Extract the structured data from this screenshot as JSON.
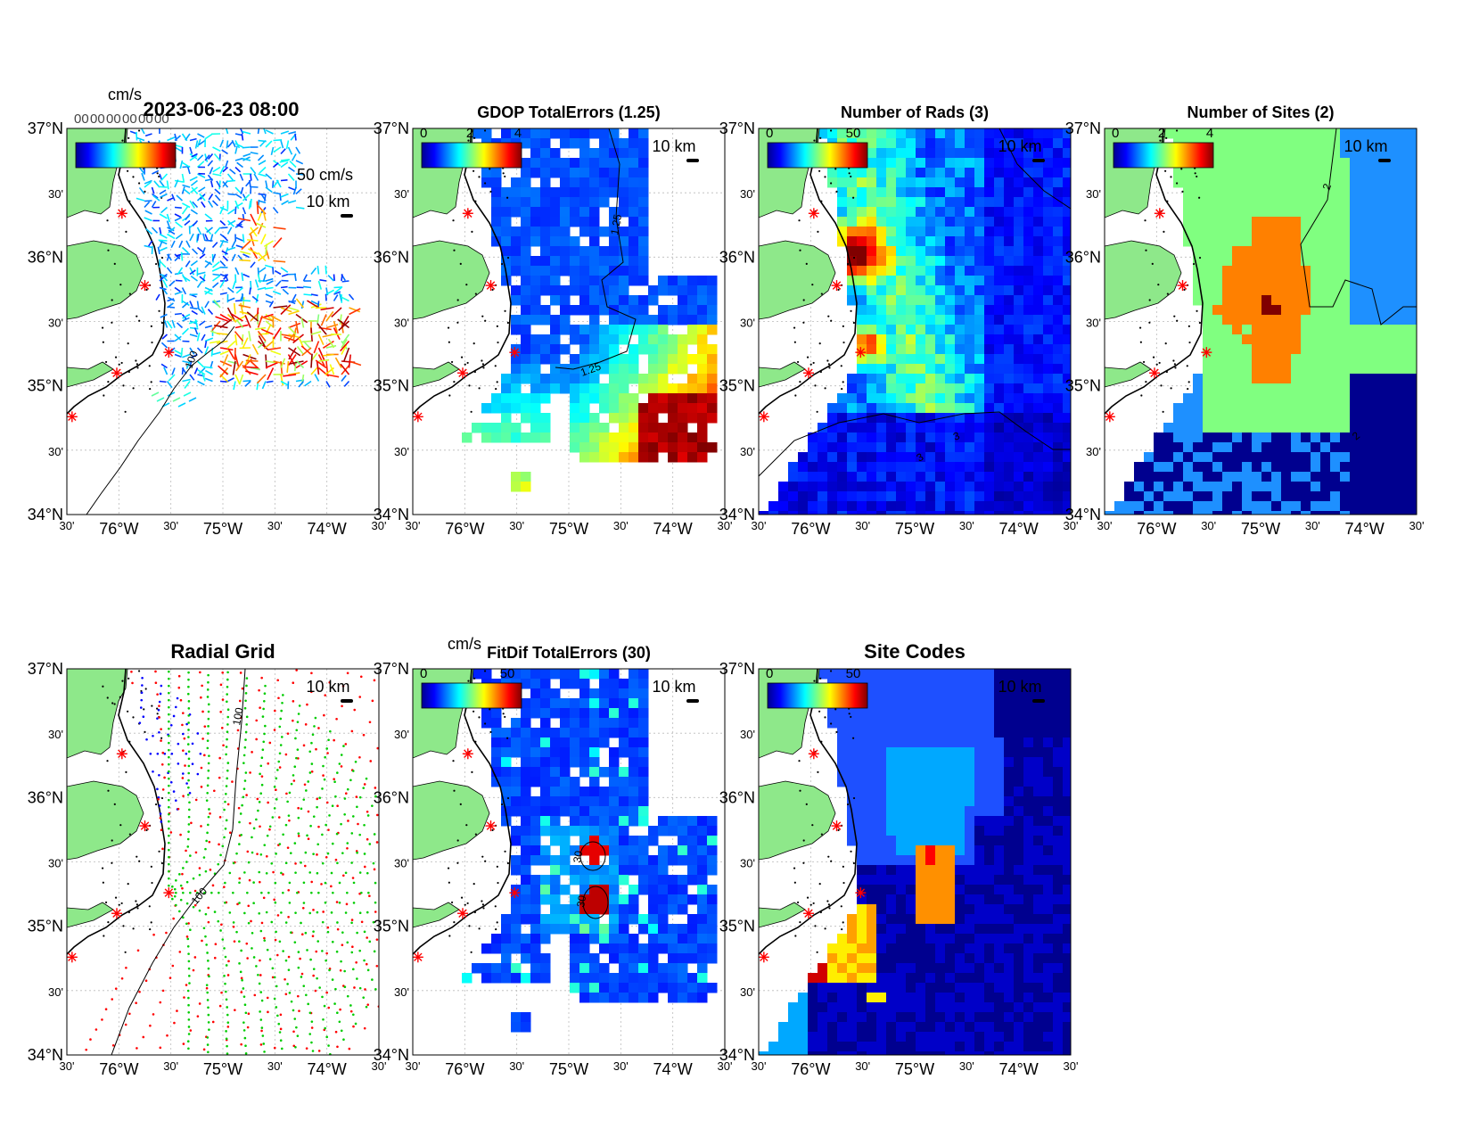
{
  "figure": {
    "main_title": "2023-06-23 08:00",
    "velocity_unit": "cm/s",
    "scale_arrow_label": "50 cm/s",
    "distance_scale_label": "10 km",
    "overlapping_legend_text": "0"
  },
  "axes": {
    "lat_labels": [
      "37°N",
      "30'",
      "36°N",
      "30'",
      "35°N",
      "30'",
      "34°N"
    ],
    "lon_labels": [
      "30'",
      "76°W",
      "30'",
      "75°W",
      "30'",
      "74°W",
      "30'"
    ]
  },
  "panels": [
    {
      "id": "velocity",
      "title": "",
      "colorbar_unit": "cm/s",
      "colorbar_ticks": [],
      "contour_label": "100",
      "colormap": "jet"
    },
    {
      "id": "gdop",
      "title": "GDOP TotalErrors (1.25)",
      "colorbar_unit": "",
      "colorbar_ticks": [
        "0",
        "2",
        "4"
      ],
      "contour_label": "1.25"
    },
    {
      "id": "numrads",
      "title": "Number of Rads (3)",
      "colorbar_unit": "",
      "colorbar_ticks": [
        "0",
        "50"
      ],
      "contour_label": "3"
    },
    {
      "id": "numsites",
      "title": "Number of Sites (2)",
      "colorbar_unit": "",
      "colorbar_ticks": [
        "0",
        "2",
        "4"
      ],
      "contour_label": "2"
    },
    {
      "id": "radialgrid",
      "title": "Radial Grid",
      "colorbar_unit": "",
      "colorbar_ticks": [],
      "contour_label": "100"
    },
    {
      "id": "fitdif",
      "title": "FitDif TotalErrors (30)",
      "colorbar_unit": "cm/s",
      "colorbar_ticks": [
        "0",
        "50"
      ],
      "contour_label": "30"
    },
    {
      "id": "sitecodes",
      "title": "Site Codes",
      "colorbar_unit": "",
      "colorbar_ticks": [
        "0",
        "50"
      ],
      "contour_label": ""
    }
  ],
  "colors": {
    "land": "#8ee88a",
    "ocean_low": "#00008f",
    "ocean_mid": "#1e5aff",
    "radial_site_a": "#0000ff",
    "radial_site_b": "#ff0000",
    "radial_site_c": "#00cc00",
    "radial_site_d": "#000000",
    "site_marker": "#ff0000"
  },
  "chart_data": {
    "type": "heatmap",
    "region": {
      "lon_range": [
        -76.5,
        -73.5
      ],
      "lat_range": [
        34.0,
        37.0
      ]
    },
    "sites": [
      {
        "lon": -75.97,
        "lat": 36.34
      },
      {
        "lon": -75.75,
        "lat": 35.78
      },
      {
        "lon": -75.52,
        "lat": 35.26
      },
      {
        "lon": -76.02,
        "lat": 35.1
      },
      {
        "lon": -76.45,
        "lat": 34.76
      }
    ]
  }
}
